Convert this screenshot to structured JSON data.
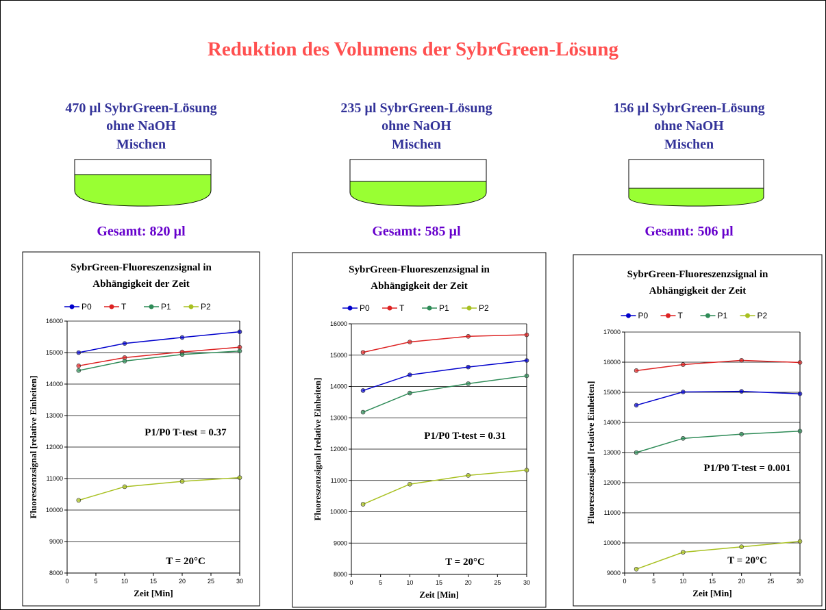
{
  "title": "Reduktion des Volumens der SybrGreen-Lösung",
  "panels": [
    {
      "line1": "470 µl SybrGreen-Lösung",
      "line2": "ohne NaOH",
      "line3": "Mischen",
      "total": "Gesamt: 820 µl"
    },
    {
      "line1": "235 µl SybrGreen-Lösung",
      "line2": "ohne NaOH",
      "line3": "Mischen",
      "total": "Gesamt: 585 µl"
    },
    {
      "line1": "156 µl SybrGreen-Lösung",
      "line2": "ohne NaOH",
      "line3": "Mischen",
      "total": "Gesamt: 506 µl"
    }
  ],
  "chart_data": [
    {
      "type": "line",
      "title": "SybrGreen-Fluoreszenzsignal in Abhängigkeit der Zeit",
      "x_label": "Zeit [Min]",
      "y_label": "Fluoreszenzsignal [relative Einheiten]",
      "x": [
        2,
        10,
        20,
        30
      ],
      "xlim": [
        0,
        30
      ],
      "xticks": [
        0,
        5,
        10,
        15,
        20,
        25,
        30
      ],
      "ylim": [
        8000,
        16000
      ],
      "yticks": [
        8000,
        9000,
        10000,
        11000,
        12000,
        13000,
        14000,
        15000,
        16000
      ],
      "grid": true,
      "annotations": [
        "P1/P0 T-test = 0.37",
        "T = 20°C"
      ],
      "series": [
        {
          "name": "P0",
          "color": "#0000cc",
          "values": [
            15000,
            15290,
            15480,
            15660
          ]
        },
        {
          "name": "T",
          "color": "#dd2222",
          "values": [
            14580,
            14840,
            15020,
            15170
          ]
        },
        {
          "name": "P1",
          "color": "#2e8b57",
          "values": [
            14430,
            14730,
            14940,
            15050
          ]
        },
        {
          "name": "P2",
          "color": "#a8c020",
          "values": [
            10310,
            10740,
            10910,
            11030
          ]
        }
      ]
    },
    {
      "type": "line",
      "title": "SybrGreen-Fluoreszenzsignal in Abhängigkeit der Zeit",
      "x_label": "Zeit [Min]",
      "y_label": "Fluoreszenzsignal [relative Einheiten]",
      "x": [
        2,
        10,
        20,
        30
      ],
      "xlim": [
        0,
        30
      ],
      "xticks": [
        0,
        5,
        10,
        15,
        20,
        25,
        30
      ],
      "ylim": [
        8000,
        16000
      ],
      "yticks": [
        8000,
        9000,
        10000,
        11000,
        12000,
        13000,
        14000,
        15000,
        16000
      ],
      "grid": true,
      "annotations": [
        "P1/P0 T-test = 0.31",
        "T = 20°C"
      ],
      "series": [
        {
          "name": "P0",
          "color": "#0000cc",
          "values": [
            13870,
            14370,
            14620,
            14830
          ]
        },
        {
          "name": "T",
          "color": "#dd2222",
          "values": [
            15090,
            15420,
            15600,
            15650
          ]
        },
        {
          "name": "P1",
          "color": "#2e8b57",
          "values": [
            13180,
            13790,
            14090,
            14340
          ]
        },
        {
          "name": "P2",
          "color": "#a8c020",
          "values": [
            10240,
            10880,
            11160,
            11330
          ]
        }
      ]
    },
    {
      "type": "line",
      "title": "SybrGreen-Fluoreszenzsignal in Abhängigkeit der Zeit",
      "x_label": "Zeit [Min]",
      "y_label": "Fluoreszenzsignal [relative Einheiten]",
      "x": [
        2,
        10,
        20,
        30
      ],
      "xlim": [
        0,
        30
      ],
      "xticks": [
        0,
        5,
        10,
        15,
        20,
        25,
        30
      ],
      "ylim": [
        9000,
        17000
      ],
      "yticks": [
        9000,
        10000,
        11000,
        12000,
        13000,
        14000,
        15000,
        16000,
        17000
      ],
      "grid": true,
      "annotations": [
        "P1/P0 T-test = 0.001",
        "T = 20°C"
      ],
      "series": [
        {
          "name": "P0",
          "color": "#0000cc",
          "values": [
            14570,
            15010,
            15030,
            14950
          ]
        },
        {
          "name": "T",
          "color": "#dd2222",
          "values": [
            15720,
            15920,
            16060,
            15990
          ]
        },
        {
          "name": "P1",
          "color": "#2e8b57",
          "values": [
            13000,
            13470,
            13610,
            13710
          ]
        },
        {
          "name": "P2",
          "color": "#a8c020",
          "values": [
            9130,
            9690,
            9870,
            10050
          ]
        }
      ]
    }
  ]
}
